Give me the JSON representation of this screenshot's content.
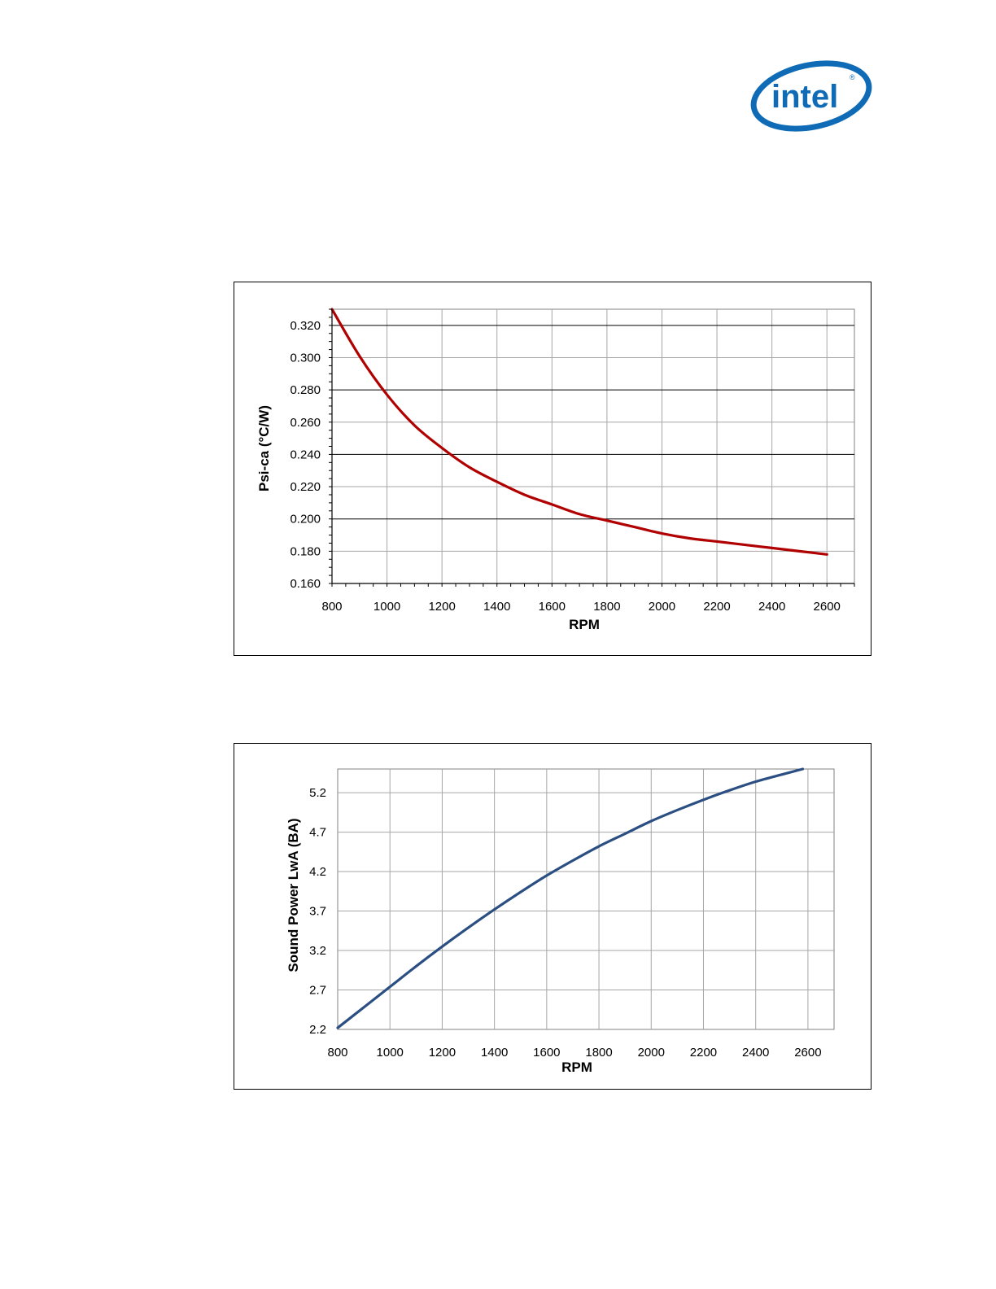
{
  "logo": {
    "text": "intel",
    "color": "#0f6bb5"
  },
  "chart_data": [
    {
      "type": "line",
      "title": "",
      "xlabel": "RPM",
      "ylabel": "Psi-ca (°C/W)",
      "xlim": [
        800,
        2700
      ],
      "ylim": [
        0.16,
        0.33
      ],
      "x_ticks": [
        "800",
        "1000",
        "1200",
        "1400",
        "1600",
        "1800",
        "2000",
        "2200",
        "2400",
        "2600"
      ],
      "y_ticks": [
        "0.160",
        "0.180",
        "0.200",
        "0.220",
        "0.240",
        "0.260",
        "0.280",
        "0.300",
        "0.320"
      ],
      "grid": true,
      "color": "#b00000",
      "series": [
        {
          "x": [
            800,
            900,
            1000,
            1100,
            1200,
            1300,
            1400,
            1500,
            1600,
            1700,
            1800,
            1900,
            2000,
            2100,
            2200,
            2300,
            2400,
            2500,
            2600
          ],
          "values": [
            0.33,
            0.301,
            0.277,
            0.258,
            0.244,
            0.232,
            0.223,
            0.215,
            0.209,
            0.203,
            0.199,
            0.195,
            0.191,
            0.188,
            0.186,
            0.184,
            0.182,
            0.18,
            0.178
          ]
        }
      ]
    },
    {
      "type": "line",
      "title": "",
      "xlabel": "RPM",
      "ylabel": "Sound Power LwA (BA)",
      "xlim": [
        800,
        2700
      ],
      "ylim": [
        2.2,
        5.5
      ],
      "x_ticks": [
        "800",
        "1000",
        "1200",
        "1400",
        "1600",
        "1800",
        "2000",
        "2200",
        "2400",
        "2600"
      ],
      "y_ticks": [
        "2.2",
        "2.7",
        "3.2",
        "3.7",
        "4.2",
        "4.7",
        "5.2"
      ],
      "grid": true,
      "color": "#2b4f82",
      "series": [
        {
          "x": [
            800,
            900,
            1000,
            1100,
            1200,
            1300,
            1400,
            1500,
            1600,
            1700,
            1800,
            1900,
            2000,
            2100,
            2200,
            2300,
            2400,
            2500,
            2580
          ],
          "values": [
            2.22,
            2.48,
            2.74,
            3.0,
            3.25,
            3.49,
            3.72,
            3.94,
            4.15,
            4.34,
            4.52,
            4.68,
            4.84,
            4.98,
            5.11,
            5.23,
            5.34,
            5.43,
            5.5
          ]
        }
      ]
    }
  ]
}
